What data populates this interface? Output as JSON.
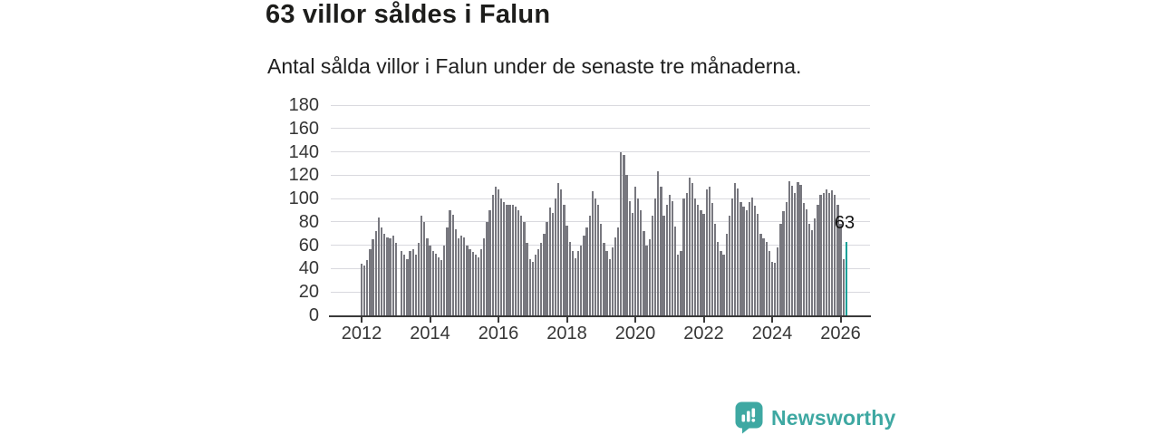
{
  "header": {
    "title": "63 villor såldes i Falun",
    "subtitle": "Antal sålda villor i Falun under de senaste tre månaderna."
  },
  "chart_data": {
    "type": "bar",
    "title": "63 villor såldes i Falun",
    "subtitle": "Antal sålda villor i Falun under de senaste tre månaderna.",
    "unit": "antal sålda villor (rullande tre månader)",
    "start_month": "2012-01",
    "end_month": "2026-03",
    "frequency": "monthly",
    "values": [
      44,
      43,
      47,
      57,
      65,
      72,
      84,
      75,
      70,
      67,
      66,
      68,
      62,
      0,
      55,
      52,
      48,
      55,
      57,
      52,
      62,
      85,
      80,
      66,
      60,
      55,
      53,
      50,
      47,
      60,
      75,
      90,
      86,
      74,
      66,
      68,
      67,
      60,
      57,
      54,
      52,
      50,
      57,
      66,
      80,
      90,
      103,
      110,
      108,
      100,
      97,
      95,
      95,
      95,
      93,
      90,
      85,
      80,
      62,
      48,
      46,
      52,
      57,
      62,
      70,
      80,
      92,
      88,
      100,
      113,
      108,
      95,
      77,
      63,
      55,
      49,
      55,
      60,
      68,
      75,
      85,
      106,
      100,
      95,
      78,
      62,
      55,
      48,
      58,
      67,
      75,
      140,
      137,
      120,
      98,
      88,
      110,
      100,
      90,
      72,
      60,
      65,
      85,
      100,
      123,
      110,
      85,
      95,
      103,
      98,
      76,
      52,
      55,
      100,
      105,
      118,
      113,
      100,
      95,
      90,
      87,
      108,
      110,
      96,
      78,
      63,
      55,
      52,
      70,
      85,
      100,
      113,
      109,
      97,
      93,
      90,
      97,
      101,
      94,
      87,
      70,
      66,
      63,
      55,
      46,
      45,
      58,
      78,
      89,
      97,
      115,
      111,
      105,
      114,
      112,
      96,
      91,
      78,
      73,
      83,
      95,
      103,
      105,
      108,
      105,
      107,
      103,
      95,
      78,
      48,
      63
    ],
    "latest_value": 63,
    "annotation": "63",
    "ylim": [
      0,
      180
    ],
    "yticks": [
      0,
      20,
      40,
      60,
      80,
      100,
      120,
      140,
      160,
      180
    ],
    "xticks": [
      "2012",
      "2014",
      "2016",
      "2018",
      "2020",
      "2022",
      "2024",
      "2026"
    ],
    "xlabel": "",
    "ylabel": "",
    "grid": true,
    "legend": "none",
    "bar_color": "#78787f",
    "highlight_color": "#0aa098"
  },
  "footer": {
    "brand": "Newsworthy",
    "brand_color": "#3ea8a2",
    "logo_icon": "bar-chart-speech-bubble"
  }
}
